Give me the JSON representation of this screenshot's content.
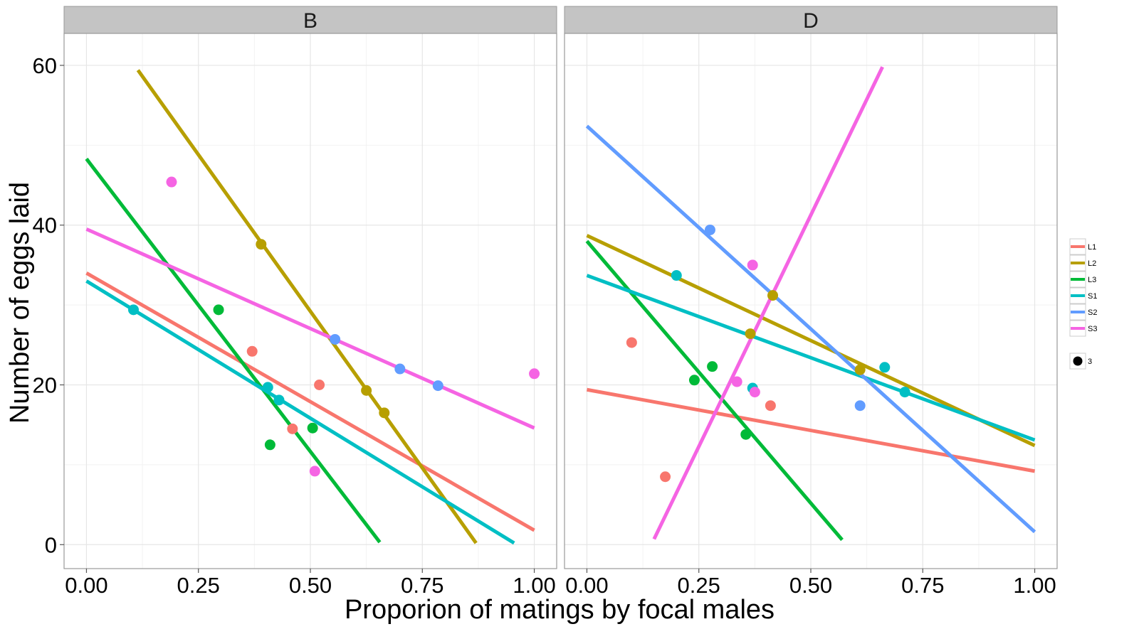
{
  "chart_data": {
    "type": "scatter",
    "xlabel": "Proporion of matings by focal males",
    "ylabel": "Number of eggs laid",
    "xlim": [
      -0.05,
      1.05
    ],
    "ylim": [
      -3,
      64
    ],
    "x_ticks": [
      "0.00",
      "0.25",
      "0.50",
      "0.75",
      "1.00"
    ],
    "y_ticks": [
      "0",
      "20",
      "40",
      "60"
    ],
    "grid": true,
    "legend_position": "right",
    "size_legend_label": "3",
    "colors": {
      "L1": "#F8766D",
      "L2": "#B79F00",
      "L3": "#00BA38",
      "S1": "#00BFC4",
      "S2": "#619CFF",
      "S3": "#F564E3"
    },
    "series_names": [
      "L1",
      "L2",
      "L3",
      "S1",
      "S2",
      "S3"
    ],
    "panels": [
      {
        "label": "B",
        "points": {
          "L1": [
            [
              0.37,
              24.2
            ],
            [
              0.46,
              14.5
            ],
            [
              0.52,
              20.0
            ]
          ],
          "L2": [
            [
              0.39,
              37.6
            ],
            [
              0.625,
              19.3
            ],
            [
              0.665,
              16.5
            ]
          ],
          "L3": [
            [
              0.295,
              29.4
            ],
            [
              0.41,
              12.5
            ],
            [
              0.505,
              14.6
            ]
          ],
          "S1": [
            [
              0.105,
              29.4
            ],
            [
              0.405,
              19.7
            ],
            [
              0.43,
              18.1
            ]
          ],
          "S2": [
            [
              0.555,
              25.7
            ],
            [
              0.7,
              22.0
            ],
            [
              0.785,
              19.9
            ]
          ],
          "S3": [
            [
              0.19,
              45.4
            ],
            [
              0.51,
              9.2
            ],
            [
              1.0,
              21.4
            ]
          ]
        },
        "lines": {
          "L1": [
            [
              0.0,
              34.0
            ],
            [
              1.0,
              1.8
            ]
          ],
          "L2": [
            [
              0.115,
              59.4
            ],
            [
              0.87,
              0.2
            ]
          ],
          "L3": [
            [
              0.0,
              48.3
            ],
            [
              0.655,
              0.3
            ]
          ],
          "S1": [
            [
              0.0,
              33.0
            ],
            [
              0.955,
              0.2
            ]
          ],
          "S3": [
            [
              0.0,
              39.5
            ],
            [
              1.0,
              14.6
            ]
          ]
        }
      },
      {
        "label": "D",
        "points": {
          "L1": [
            [
              0.1,
              25.3
            ],
            [
              0.175,
              8.5
            ],
            [
              0.41,
              17.4
            ]
          ],
          "L2": [
            [
              0.365,
              26.4
            ],
            [
              0.415,
              31.2
            ],
            [
              0.61,
              21.9
            ]
          ],
          "L3": [
            [
              0.24,
              20.6
            ],
            [
              0.28,
              22.3
            ],
            [
              0.355,
              13.8
            ]
          ],
          "S1": [
            [
              0.2,
              33.7
            ],
            [
              0.37,
              19.6
            ],
            [
              0.665,
              22.2
            ],
            [
              0.71,
              19.1
            ]
          ],
          "S2": [
            [
              0.275,
              39.4
            ],
            [
              0.61,
              17.4
            ]
          ],
          "S3": [
            [
              0.335,
              20.4
            ],
            [
              0.37,
              35.0
            ],
            [
              0.375,
              19.1
            ]
          ]
        },
        "lines": {
          "L1": [
            [
              0.0,
              19.4
            ],
            [
              1.0,
              9.2
            ]
          ],
          "L2": [
            [
              0.0,
              38.7
            ],
            [
              1.0,
              12.4
            ]
          ],
          "L3": [
            [
              0.0,
              38.0
            ],
            [
              0.57,
              0.6
            ]
          ],
          "S1": [
            [
              0.0,
              33.7
            ],
            [
              1.0,
              13.1
            ]
          ],
          "S2": [
            [
              0.0,
              52.4
            ],
            [
              1.0,
              1.6
            ]
          ],
          "S3": [
            [
              0.15,
              0.7
            ],
            [
              0.66,
              59.8
            ]
          ]
        }
      }
    ]
  }
}
